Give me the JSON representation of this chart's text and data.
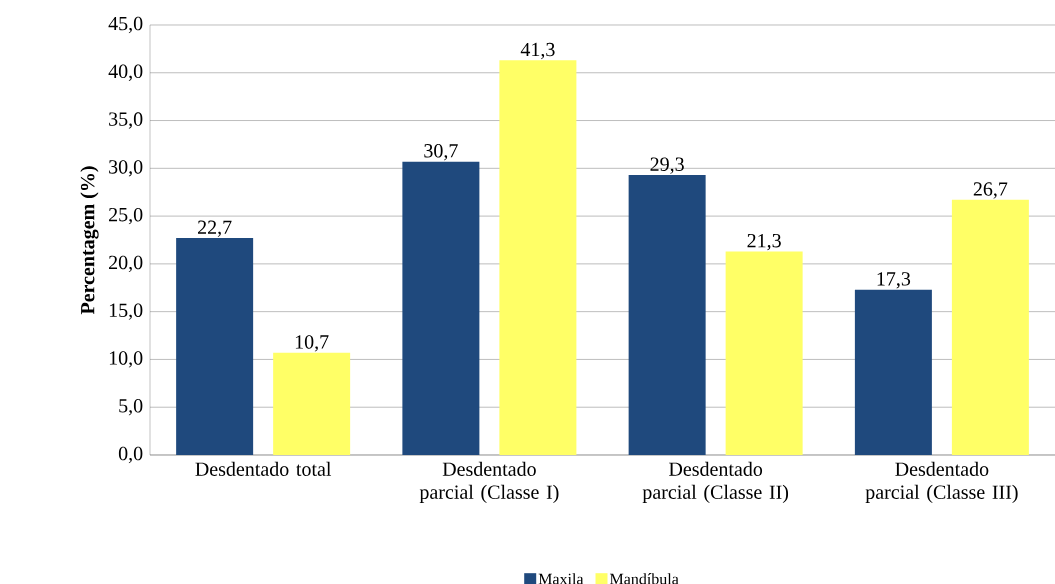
{
  "chart_data": {
    "type": "bar",
    "ylabel": "Percentagem (%)",
    "categories": [
      "Desdentado total",
      "Desdentado parcial (Classe I)",
      "Desdentado parcial (Classe II)",
      "Desdentado parcial (Classe III)"
    ],
    "series": [
      {
        "name": "Maxila",
        "color": "#1f497d",
        "values": [
          22.7,
          30.7,
          29.3,
          17.3
        ],
        "value_labels": [
          "22,7",
          "30,7",
          "29,3",
          "17,3"
        ]
      },
      {
        "name": "Mandíbula",
        "color": "#ffff66",
        "values": [
          10.7,
          41.3,
          21.3,
          26.7
        ],
        "value_labels": [
          "10,7",
          "41,3",
          "21,3",
          "26,7"
        ]
      }
    ],
    "ylim": [
      0,
      45
    ],
    "yticks": [
      {
        "value": 0,
        "label": "0,0"
      },
      {
        "value": 5,
        "label": "5,0"
      },
      {
        "value": 10,
        "label": "10,0"
      },
      {
        "value": 15,
        "label": "15,0"
      },
      {
        "value": 20,
        "label": "20,0"
      },
      {
        "value": 25,
        "label": "25,0"
      },
      {
        "value": 30,
        "label": "30,0"
      },
      {
        "value": 35,
        "label": "35,0"
      },
      {
        "value": 40,
        "label": "40,0"
      },
      {
        "value": 45,
        "label": "45,0"
      }
    ],
    "grid": "y",
    "legend": "bottom"
  }
}
